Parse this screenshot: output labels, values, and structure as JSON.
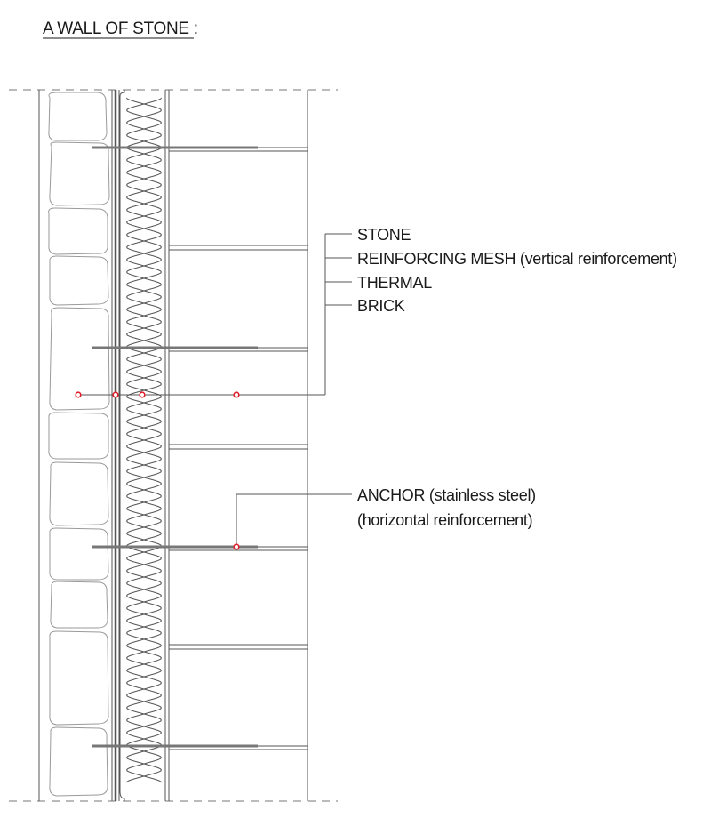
{
  "title": "A WALL OF STONE :",
  "labels": {
    "stone": "STONE",
    "mesh": "REINFORCING MESH (vertical reinforcement)",
    "thermal": "THERMAL",
    "brick": "BRICK",
    "anchor_line1": "ANCHOR (stainless steel)",
    "anchor_line2": "(horizontal reinforcement)"
  },
  "colors": {
    "marker": "#e0202a",
    "lines": "#555555",
    "stone_outline": "#9a9a9a"
  }
}
